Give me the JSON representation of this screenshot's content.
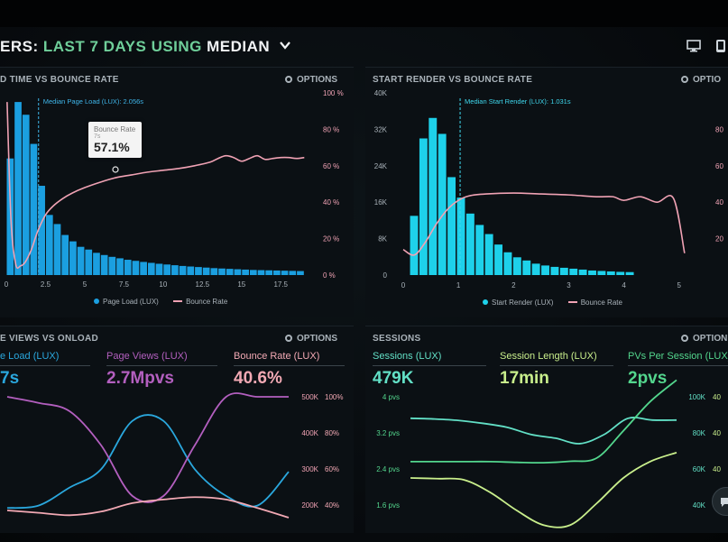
{
  "header": {
    "title_prefix": "ERS:",
    "title_range": "LAST 7 DAYS",
    "title_using": "USING",
    "title_stat": "MEDIAN",
    "icons": [
      "desktop-icon",
      "mobile-icon"
    ]
  },
  "panels": {
    "load_bounce": {
      "title": "D TIME VS BOUNCE RATE",
      "options_label": "OPTIONS",
      "median_label": "Median Page Load (LUX): 2.056s",
      "tooltip": {
        "label": "Bounce Rate",
        "sub": "7s",
        "value": "57.1%"
      },
      "legend": {
        "bars": "Page Load (LUX)",
        "line": "Bounce Rate"
      }
    },
    "render_bounce": {
      "title": "START RENDER VS BOUNCE RATE",
      "options_label": "OPTIO",
      "median_label": "Median Start Render (LUX): 1.031s",
      "legend": {
        "bars": "Start Render (LUX)",
        "line": "Bounce Rate"
      }
    },
    "pageviews_onload": {
      "title": "E VIEWS VS ONLOAD",
      "options_label": "OPTIONS",
      "metrics": [
        {
          "label": "e Load (LUX)",
          "value": "7s",
          "color": "#2aa7dd"
        },
        {
          "label": "Page Views (LUX)",
          "value": "2.7Mpvs",
          "color": "#b35fbf"
        },
        {
          "label": "Bounce Rate (LUX)",
          "value": "40.6%",
          "color": "#f2a9b4"
        }
      ]
    },
    "sessions": {
      "title": "SESSIONS",
      "options_label": "OPTION",
      "metrics": [
        {
          "label": "Sessions (LUX)",
          "value": "479K",
          "color": "#62e0c6"
        },
        {
          "label": "Session Length (LUX)",
          "value": "17min",
          "color": "#c9ef8c"
        },
        {
          "label": "PVs Per Session (LUX)",
          "value": "2pvs",
          "color": "#53d68d"
        }
      ]
    }
  },
  "colors": {
    "bar_blue": "#1b9fe0",
    "bar_cyan": "#1ed1ea",
    "pink": "#f0a2b4",
    "purple": "#b35fbf",
    "teal": "#62e0c6",
    "lime": "#c9ef8c",
    "green": "#53d68d"
  },
  "chart_data": [
    {
      "id": "load_bounce",
      "type": "bar",
      "title": "D TIME VS BOUNCE RATE",
      "x_ticks": [
        "0",
        "2.5",
        "5",
        "7.5",
        "10",
        "12.5",
        "15",
        "17.5"
      ],
      "y_right_ticks": [
        "100 %",
        "80 %",
        "60 %",
        "40 %",
        "20 %",
        "0 %"
      ],
      "xlim": [
        0,
        19.5
      ],
      "ylim_pct": [
        0,
        100
      ],
      "median_x": 2.056,
      "series": [
        {
          "name": "Page Load (LUX)",
          "kind": "bar",
          "bar_width": 0.5,
          "x_start": 0.25,
          "values": [
            64,
            95,
            88,
            72,
            49,
            33,
            28,
            22,
            18.5,
            15.5,
            14,
            12.2,
            11,
            10,
            9.2,
            8.4,
            7.8,
            7.2,
            6.7,
            6.2,
            5.8,
            5.4,
            5,
            4.7,
            4.4,
            4.1,
            3.8,
            3.6,
            3.4,
            3.2,
            3,
            2.8,
            2.7,
            2.6,
            2.5,
            2.4,
            2.3,
            2.2
          ]
        },
        {
          "name": "Bounce Rate",
          "kind": "line",
          "x": [
            0.05,
            0.3,
            0.6,
            0.9,
            1.2,
            1.6,
            2.0,
            2.5,
            3.0,
            3.6,
            4.2,
            5.0,
            6.0,
            7.0,
            8.0,
            9.0,
            10.0,
            11.0,
            12.0,
            13.0,
            13.5,
            14.0,
            14.5,
            15.0,
            15.5,
            16.0,
            16.5,
            17.0,
            17.5,
            18.0,
            18.5,
            19.0
          ],
          "values": [
            95,
            30,
            6,
            5,
            7,
            14,
            24,
            33,
            38,
            42,
            45,
            48,
            51,
            53.5,
            55,
            56.5,
            57.5,
            58.5,
            60,
            62,
            64,
            65.5,
            64.5,
            62.5,
            64,
            65.5,
            63.5,
            64,
            64.5,
            64.5,
            64,
            64.5
          ]
        }
      ]
    },
    {
      "id": "render_bounce",
      "type": "bar",
      "title": "START RENDER VS BOUNCE RATE",
      "x_ticks": [
        "0",
        "1",
        "2",
        "3",
        "4",
        "5"
      ],
      "y_left_ticks": [
        "40K",
        "32K",
        "24K",
        "16K",
        "8K",
        "0"
      ],
      "y_right_ticks": [
        "80",
        "60",
        "40",
        "20"
      ],
      "xlim": [
        0,
        5.2
      ],
      "ylim_left": [
        0,
        40000
      ],
      "median_x": 1.031,
      "series": [
        {
          "name": "Start Render (LUX)",
          "kind": "bar",
          "bar_width": 0.17,
          "x_start": 0.2,
          "values": [
            13000,
            30000,
            34500,
            31000,
            21500,
            17000,
            13500,
            11000,
            9000,
            6700,
            5000,
            3900,
            3200,
            2500,
            2100,
            1800,
            1600,
            1400,
            1200,
            1000,
            900,
            800,
            700,
            650
          ]
        },
        {
          "name": "Bounce Rate",
          "kind": "line",
          "x": [
            0.0,
            0.2,
            0.4,
            0.6,
            0.8,
            1.0,
            1.2,
            1.5,
            2.0,
            2.5,
            3.0,
            3.5,
            3.8,
            4.0,
            4.3,
            4.6,
            4.9,
            5.1
          ],
          "values": [
            14,
            11,
            18,
            28,
            36,
            41,
            43.5,
            44.5,
            45,
            44.5,
            44,
            43,
            43,
            41,
            43,
            40,
            42,
            12
          ]
        }
      ]
    },
    {
      "id": "pageviews_onload",
      "type": "line",
      "title": "E VIEWS VS ONLOAD",
      "y_right_ticks_a": [
        "500K",
        "400K",
        "300K",
        "200K"
      ],
      "y_right_ticks_b": [
        "100%",
        "80%",
        "60%",
        "40%"
      ],
      "series": [
        {
          "name": "e Load (LUX)",
          "values": [
            8,
            10,
            25,
            40,
            80,
            80,
            40,
            18,
            10,
            38
          ]
        },
        {
          "name": "Page Views (LUX)",
          "values": [
            100,
            95,
            88,
            60,
            18,
            18,
            60,
            100,
            100,
            100
          ]
        },
        {
          "name": "Bounce Rate (LUX)",
          "values": [
            6,
            4,
            2,
            5,
            12,
            15,
            17,
            15,
            8,
            0
          ]
        }
      ]
    },
    {
      "id": "sessions",
      "type": "line",
      "title": "SESSIONS",
      "y_left_ticks": [
        "4 pvs",
        "3.2 pvs",
        "2.4 pvs",
        "1.6 pvs"
      ],
      "y_right_ticks_a": [
        "100K",
        "80K",
        "60K",
        "40K"
      ],
      "y_right_ticks_b": [
        "40",
        "40",
        "40",
        "40"
      ],
      "series": [
        {
          "name": "Sessions (LUX)",
          "values": [
            100,
            98,
            94,
            86,
            75,
            55,
            45,
            30,
            55,
            100,
            95,
            95
          ]
        },
        {
          "name": "Session Length (LUX)",
          "values": [
            10,
            8,
            5,
            -30,
            -80,
            -120,
            -120,
            -60,
            10,
            55,
            80
          ]
        },
        {
          "name": "PVs Per Session (LUX)",
          "values": [
            55,
            55,
            55,
            55,
            53,
            52,
            56,
            65,
            140,
            220,
            280
          ]
        }
      ]
    }
  ]
}
